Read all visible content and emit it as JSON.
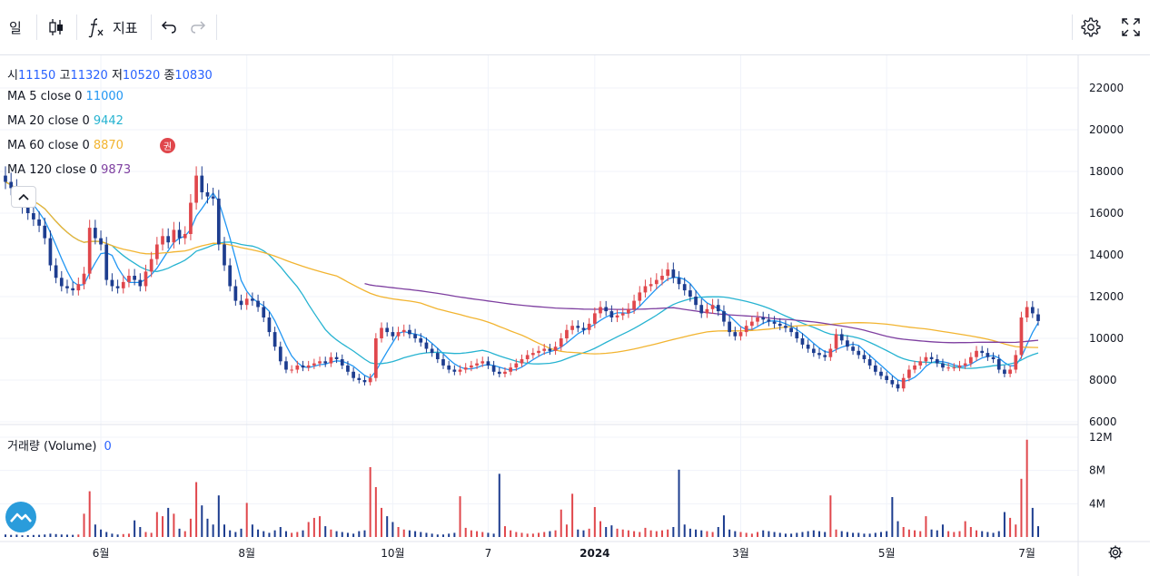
{
  "toolbar": {
    "interval": "일",
    "indicators_label": "지표"
  },
  "ohlc": {
    "open_label": "시",
    "open": "11150",
    "high_label": "고",
    "high": "11320",
    "low_label": "저",
    "low": "10520",
    "close_label": "종",
    "close": "10830"
  },
  "ma": [
    {
      "label": "MA 5 close 0",
      "value": "11000",
      "color": "#2196f3"
    },
    {
      "label": "MA 20 close 0",
      "value": "9442",
      "color": "#26b3d1"
    },
    {
      "label": "MA 60 close 0",
      "value": "8870",
      "color": "#f2b430"
    },
    {
      "label": "MA 120 close 0",
      "value": "9873",
      "color": "#7e3fa0"
    }
  ],
  "badge": "권",
  "volume_label": "거래량 (Volume)",
  "volume_value": "0",
  "price_axis": [
    "22000",
    "20000",
    "18000",
    "16000",
    "14000",
    "12000",
    "10000",
    "8000",
    "6000"
  ],
  "volume_axis": [
    "12M",
    "8M",
    "4M"
  ],
  "time_axis": [
    "6월",
    "8월",
    "10월",
    "7",
    "2024",
    "3월",
    "5월",
    "7월"
  ],
  "colors": {
    "up": "#e0474c",
    "down": "#1d3d8f",
    "grid": "#f0f3fa",
    "text": "#131722"
  },
  "chart_data": {
    "type": "candlestick",
    "ylim": [
      6000,
      22500
    ],
    "volume_ylim": [
      0,
      12500000
    ],
    "close": [
      17500,
      17200,
      16800,
      16300,
      16000,
      15700,
      15400,
      14800,
      13500,
      12900,
      12500,
      12400,
      12300,
      12600,
      13100,
      15300,
      14800,
      14500,
      12800,
      12500,
      12400,
      12700,
      13000,
      12800,
      12500,
      13200,
      13800,
      14500,
      14900,
      14600,
      15200,
      14800,
      15000,
      16500,
      17800,
      17000,
      16800,
      16700,
      14500,
      13500,
      12500,
      11800,
      11600,
      11900,
      11800,
      11500,
      11000,
      10300,
      9600,
      8900,
      8500,
      8500,
      8700,
      8600,
      8700,
      8800,
      8900,
      8800,
      9100,
      9000,
      8700,
      8400,
      8100,
      8000,
      7900,
      8100,
      10000,
      10500,
      10300,
      10100,
      10300,
      10400,
      10200,
      10000,
      9800,
      9500,
      9300,
      9000,
      8700,
      8500,
      8400,
      8500,
      8600,
      8700,
      8800,
      8900,
      8700,
      8400,
      8300,
      8400,
      8600,
      8800,
      9000,
      9200,
      9300,
      9400,
      9500,
      9400,
      9600,
      10000,
      10400,
      10600,
      10500,
      10400,
      10700,
      11200,
      11500,
      11300,
      11000,
      11100,
      11200,
      11400,
      11800,
      12200,
      12500,
      12600,
      12800,
      13000,
      13300,
      12900,
      12600,
      12300,
      12000,
      11600,
      11200,
      11400,
      11600,
      11300,
      10800,
      10300,
      10100,
      10300,
      10600,
      10800,
      11000,
      10900,
      10800,
      10700,
      10600,
      10500,
      10300,
      10000,
      9700,
      9500,
      9300,
      9200,
      9100,
      9500,
      10200,
      9900,
      9600,
      9400,
      9200,
      9000,
      8700,
      8400,
      8200,
      8000,
      7800,
      7600,
      8100,
      8500,
      8700,
      8900,
      9100,
      9000,
      8800,
      8600,
      8600,
      8600,
      8700,
      8800,
      9100,
      9400,
      9300,
      9100,
      9000,
      8500,
      8300,
      8500,
      9200,
      11000,
      11500,
      11200,
      10830
    ],
    "open": [
      17800,
      17500,
      17200,
      16800,
      16300,
      16000,
      15700,
      15400,
      14800,
      13500,
      12900,
      12500,
      12400,
      12300,
      12600,
      13100,
      15300,
      14800,
      14500,
      12800,
      12500,
      12400,
      12700,
      13000,
      12800,
      12500,
      13200,
      13800,
      14500,
      14900,
      14600,
      15200,
      14800,
      15000,
      16500,
      17800,
      17000,
      16800,
      16700,
      14500,
      13500,
      12500,
      11800,
      11600,
      11900,
      11800,
      11500,
      11000,
      10300,
      9600,
      8900,
      8500,
      8500,
      8700,
      8600,
      8700,
      8800,
      8900,
      8800,
      9100,
      9000,
      8700,
      8400,
      8100,
      8000,
      7900,
      8100,
      10000,
      10500,
      10300,
      10100,
      10300,
      10400,
      10200,
      10000,
      9800,
      9500,
      9300,
      9000,
      8700,
      8500,
      8400,
      8500,
      8600,
      8700,
      8800,
      8900,
      8700,
      8400,
      8300,
      8400,
      8600,
      8800,
      9000,
      9200,
      9300,
      9400,
      9500,
      9400,
      9600,
      10000,
      10400,
      10600,
      10500,
      10400,
      10700,
      11200,
      11500,
      11300,
      11000,
      11100,
      11200,
      11400,
      11800,
      12200,
      12500,
      12600,
      12800,
      13000,
      13300,
      12900,
      12600,
      12300,
      12000,
      11600,
      11200,
      11400,
      11600,
      11300,
      10800,
      10300,
      10100,
      10300,
      10600,
      10800,
      11000,
      10900,
      10800,
      10700,
      10600,
      10500,
      10300,
      10000,
      9700,
      9500,
      9300,
      9200,
      9100,
      9500,
      10200,
      9900,
      9600,
      9400,
      9200,
      9000,
      8700,
      8400,
      8200,
      8000,
      7800,
      7600,
      8100,
      8500,
      8700,
      8900,
      9100,
      9000,
      8800,
      8600,
      8600,
      8600,
      8700,
      8800,
      9100,
      9400,
      9300,
      9100,
      9000,
      8500,
      8300,
      8500,
      9200,
      11000,
      11500,
      11150
    ],
    "volume": [
      300000,
      250000,
      280000,
      200000,
      220000,
      240000,
      260000,
      300000,
      400000,
      350000,
      300000,
      280000,
      260000,
      300000,
      2800000,
      5500000,
      1500000,
      900000,
      600000,
      400000,
      300000,
      350000,
      400000,
      2000000,
      1200000,
      600000,
      500000,
      3000000,
      2500000,
      3500000,
      2800000,
      1000000,
      700000,
      2200000,
      6600000,
      3800000,
      2200000,
      1500000,
      5000000,
      1500000,
      800000,
      600000,
      1000000,
      4100000,
      1500000,
      900000,
      700000,
      500000,
      800000,
      1200000,
      700000,
      500000,
      600000,
      800000,
      1800000,
      2300000,
      2500000,
      1300000,
      900000,
      700000,
      600000,
      500000,
      400000,
      700000,
      800000,
      8400000,
      6000000,
      3500000,
      2500000,
      1800000,
      1200000,
      900000,
      800000,
      700000,
      600000,
      500000,
      400000,
      300000,
      300000,
      400000,
      500000,
      4900000,
      1100000,
      800000,
      700000,
      600000,
      500000,
      400000,
      7600000,
      1300000,
      800000,
      600000,
      500000,
      400000,
      400000,
      500000,
      600000,
      700000,
      800000,
      3300000,
      1500000,
      5200000,
      900000,
      800000,
      1000000,
      3600000,
      1900000,
      1200000,
      1400000,
      1000000,
      900000,
      800000,
      700000,
      600000,
      1100000,
      800000,
      700000,
      800000,
      900000,
      1200000,
      8100000,
      1500000,
      1000000,
      900000,
      800000,
      700000,
      600000,
      1200000,
      2600000,
      900000,
      700000,
      600000,
      500000,
      400000,
      600000,
      800000,
      700000,
      600000,
      500000,
      400000,
      400000,
      500000,
      600000,
      700000,
      800000,
      700000,
      600000,
      5000000,
      900000,
      700000,
      600000,
      500000,
      500000,
      400000,
      400000,
      500000,
      600000,
      700000,
      4800000,
      1900000,
      1200000,
      900000,
      800000,
      700000,
      2500000,
      900000,
      800000,
      1500000,
      700000,
      600000,
      700000,
      1900000,
      1200000,
      800000,
      700000,
      600000,
      500000,
      700000,
      3000000,
      2300000,
      1500000,
      7000000,
      11700000,
      3500000,
      1300000
    ]
  }
}
